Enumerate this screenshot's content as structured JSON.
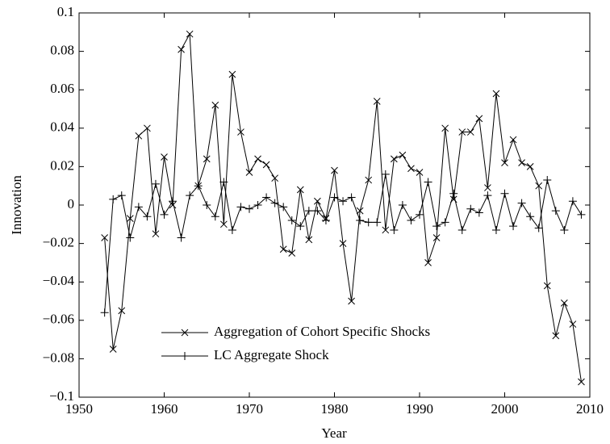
{
  "chart_data": {
    "type": "line",
    "x_label": "Year",
    "y_label": "Innovation",
    "x": [
      1953,
      1954,
      1955,
      1956,
      1957,
      1958,
      1959,
      1960,
      1961,
      1962,
      1963,
      1964,
      1965,
      1966,
      1967,
      1968,
      1969,
      1970,
      1971,
      1972,
      1973,
      1974,
      1975,
      1976,
      1977,
      1978,
      1979,
      1980,
      1981,
      1982,
      1983,
      1984,
      1985,
      1986,
      1987,
      1988,
      1989,
      1990,
      1991,
      1992,
      1993,
      1994,
      1995,
      1996,
      1997,
      1998,
      1999,
      2000,
      2001,
      2002,
      2003,
      2004,
      2005,
      2006,
      2007,
      2008,
      2009
    ],
    "series": [
      {
        "name": "Aggregation of Cohort Specific Shocks",
        "color": "#000000",
        "marker": "x",
        "values": [
          -0.017,
          -0.075,
          -0.055,
          -0.007,
          0.036,
          0.04,
          -0.015,
          0.025,
          0.0,
          0.081,
          0.089,
          0.01,
          0.024,
          0.052,
          -0.01,
          0.068,
          0.038,
          0.017,
          0.024,
          0.021,
          0.014,
          -0.023,
          -0.025,
          0.008,
          -0.018,
          0.002,
          -0.007,
          0.018,
          -0.02,
          -0.05,
          -0.003,
          0.013,
          0.054,
          -0.013,
          0.024,
          0.026,
          0.019,
          0.017,
          -0.03,
          -0.017,
          0.04,
          0.003,
          0.038,
          0.038,
          0.045,
          0.009,
          0.058,
          0.022,
          0.034,
          0.022,
          0.02,
          0.01,
          -0.042,
          -0.068,
          -0.051,
          -0.062,
          -0.092
        ]
      },
      {
        "name": "LC Aggregate Shock",
        "color": "#000000",
        "marker": "+",
        "values": [
          -0.056,
          0.003,
          0.005,
          -0.017,
          -0.001,
          -0.006,
          0.011,
          -0.005,
          0.002,
          -0.017,
          0.005,
          0.01,
          0.0,
          -0.006,
          0.012,
          -0.013,
          -0.001,
          -0.002,
          0.0,
          0.004,
          0.001,
          -0.001,
          -0.008,
          -0.011,
          -0.003,
          -0.003,
          -0.008,
          0.004,
          0.002,
          0.004,
          -0.008,
          -0.009,
          -0.009,
          0.016,
          -0.013,
          0.0,
          -0.008,
          -0.005,
          0.012,
          -0.011,
          -0.009,
          0.006,
          -0.013,
          -0.002,
          -0.004,
          0.005,
          -0.013,
          0.006,
          -0.011,
          0.001,
          -0.006,
          -0.012,
          0.013,
          -0.003,
          -0.013,
          0.002,
          -0.005
        ]
      }
    ],
    "xlim": [
      1950,
      2010
    ],
    "xticks": [
      1950,
      1960,
      1970,
      1980,
      1990,
      2000,
      2010
    ],
    "ylim": [
      -0.1,
      0.1
    ],
    "yticks": [
      {
        "value": -0.1,
        "label": "−0.1"
      },
      {
        "value": -0.08,
        "label": "−0.08"
      },
      {
        "value": -0.06,
        "label": "−0.06"
      },
      {
        "value": -0.04,
        "label": "−0.04"
      },
      {
        "value": -0.02,
        "label": "−0.02"
      },
      0,
      0.02,
      0.04,
      0.06,
      0.08,
      0.1
    ],
    "grid": false,
    "legend": "lower left"
  }
}
